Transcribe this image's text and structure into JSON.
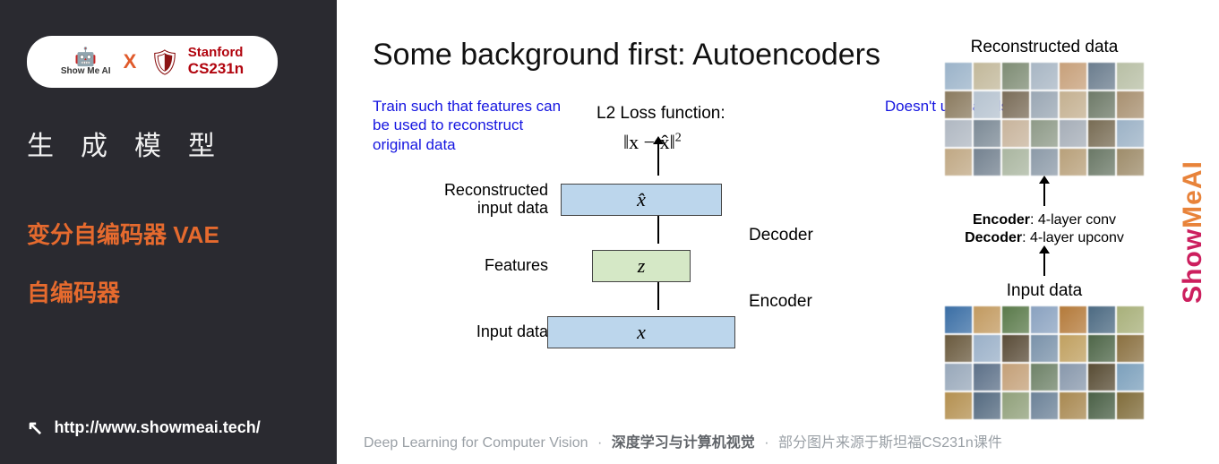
{
  "left": {
    "badge_showme": "Show Me AI",
    "badge_x": "X",
    "badge_stanford": "Stanford",
    "badge_course": "CS231n",
    "cn_title": "生成模型",
    "line1_cn": "变分自编码器",
    "line1_en": "VAE",
    "line2": "自编码器",
    "url": "http://www.showmeai.tech/"
  },
  "main": {
    "title": "Some background first: Autoencoders",
    "blue_left": "Train such that features can be used to reconstruct original data",
    "blue_right": "Doesn't use labels!",
    "loss_label": "L2 Loss function:",
    "loss_formula_html": "‖x − x̂‖",
    "layers": {
      "recon_label": "Reconstructed input data",
      "recon_sym": "x̂",
      "feat_label": "Features",
      "feat_sym": "z",
      "input_label": "Input data",
      "input_sym": "x"
    },
    "decoder": "Decoder",
    "encoder": "Encoder"
  },
  "rightcol": {
    "recon_hdr": "Reconstructed data",
    "enc_line": "Encoder",
    "enc_desc": ": 4-layer conv",
    "dec_line": "Decoder",
    "dec_desc": ": 4-layer upconv",
    "input_hdr": "Input data",
    "grid_colors_top": [
      "#9bb3c9",
      "#c2b89a",
      "#7e8c74",
      "#a8b6c4",
      "#c7a07a",
      "#6b7d8e",
      "#b8bfa5",
      "#8a7a5e",
      "#b6c3d0",
      "#7a6c58",
      "#9aa7b4",
      "#c4b090",
      "#6e7a68",
      "#a89070",
      "#b0b8c2",
      "#7c8a96",
      "#c8b49c",
      "#8e9a88",
      "#a6aeb8",
      "#786c54",
      "#9cb2c6",
      "#c0a884",
      "#748290",
      "#aab6a0",
      "#8c9aa8",
      "#b8a07a",
      "#6a7866",
      "#9e8c6a"
    ],
    "grid_colors_bottom": [
      "#3a6ea5",
      "#c29a60",
      "#5a7a4a",
      "#8aa2c0",
      "#b47a3a",
      "#4c6a82",
      "#a8b07a",
      "#6a5a3e",
      "#9ab0c8",
      "#5a4c38",
      "#7a92aa",
      "#c0a060",
      "#4e6648",
      "#8a7040",
      "#98a8ba",
      "#5c7088",
      "#c4a078",
      "#6e8268",
      "#8898ac",
      "#584c34",
      "#7ca0bc",
      "#b49050",
      "#546a80",
      "#90a07a",
      "#6c8298",
      "#a88850",
      "#4a6046",
      "#806c3a"
    ]
  },
  "brand": {
    "part1": "Show",
    "part2": "MeAI"
  },
  "footer": {
    "left": "Deep Learning for Computer Vision",
    "mid": "深度学习与计算机视觉",
    "right": "部分图片来源于斯坦福CS231n课件"
  },
  "style": {
    "left_bg": "#2a2a30",
    "orange": "#e56a2e",
    "blue": "#1515e0",
    "box_blue": "#bcd6ec",
    "box_green": "#d5e8c6",
    "stanford_red": "#b1040e"
  }
}
